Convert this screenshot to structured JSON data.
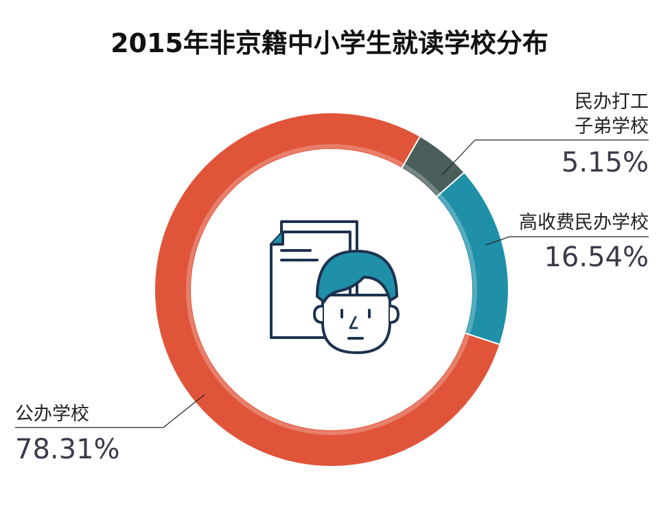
{
  "chart_data": {
    "type": "pie",
    "variant": "donut",
    "title": "2015年非京籍中小学生就读学校分布",
    "slices": [
      {
        "label_lines": [
          "民办打工",
          "子弟学校"
        ],
        "value": 5.15,
        "value_text": "5.15%",
        "color": "#4a5e5c"
      },
      {
        "label_lines": [
          "高收费民办学校"
        ],
        "value": 16.54,
        "value_text": "16.54%",
        "color": "#1f90a8"
      },
      {
        "label_lines": [
          "公办学校"
        ],
        "value": 78.31,
        "value_text": "78.31%",
        "color": "#e0553a"
      }
    ],
    "unit": "%"
  },
  "center_icon": "document-and-student-icon",
  "colors": {
    "icon_stroke": "#1d3250",
    "icon_hair": "#1f90a8",
    "icon_paper": "#ffffff"
  }
}
